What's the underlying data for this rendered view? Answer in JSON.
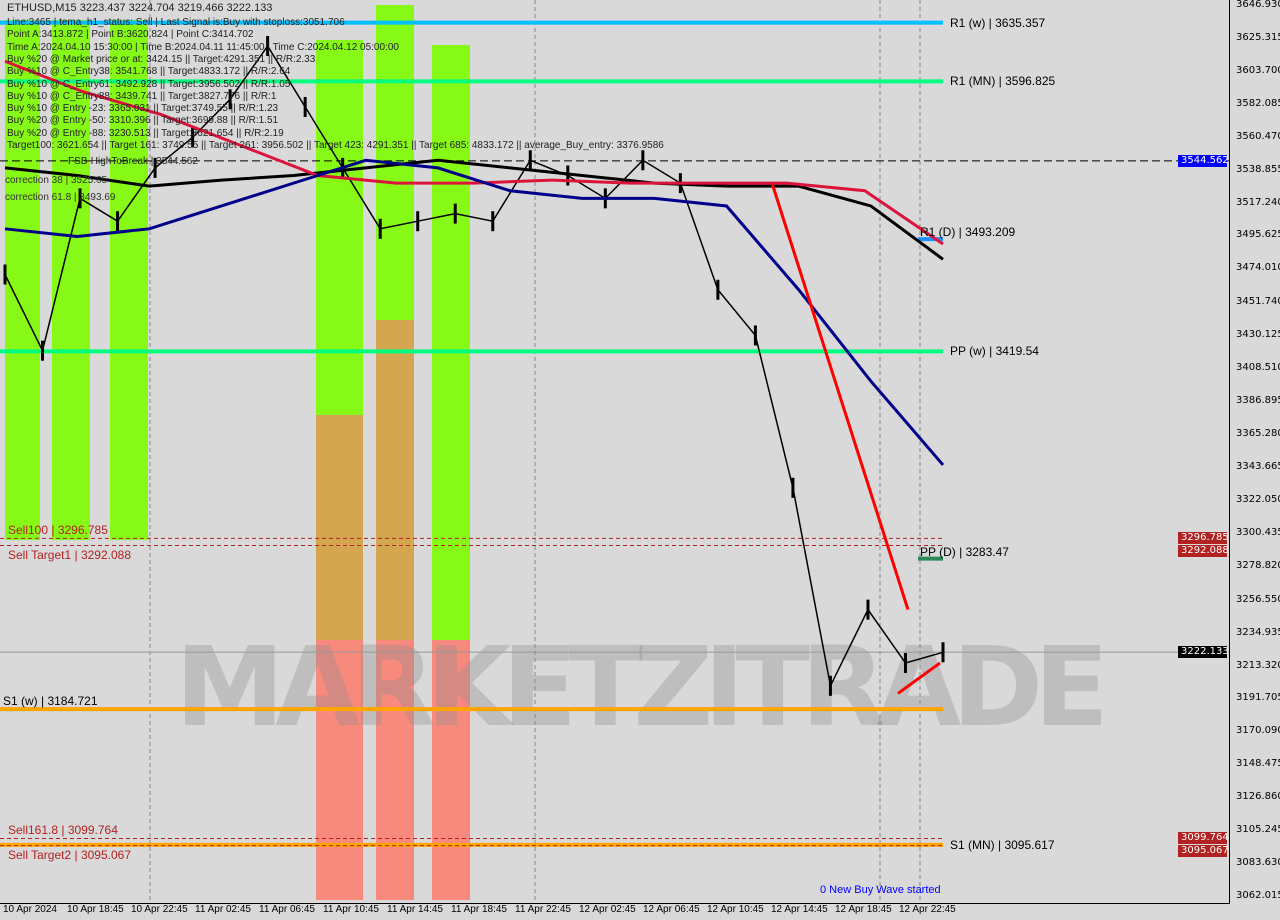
{
  "header": {
    "title": "ETHUSD,M15  3223.437 3224.704 3219.466 3222.133"
  },
  "info_lines": [
    "Line:3465 | tema_h1_status: Sell | Last Signal is:Buy with stoploss:3051.706",
    "Point A:3413.872 | Point B:3620.824 | Point C:3414.702",
    "Time A:2024.04.10 15:30:00 | Time B:2024.04.11 11:45:00 | Time C:2024.04.12 05:00:00",
    "Buy %20 @ Market price or at: 3424.15 || Target:4291.351 || R/R:2.33",
    "Buy %10 @ C_Entry38: 3541.768 || Target:4833.172 || R/R:2.64",
    "Buy %10 @ C_Entry61: 3492.928 || Target:3956.502 || R/R:1.05",
    "Buy %10 @ C_Entry88: 3439.741 || Target:3827.776 || R/R:1",
    "Buy %10 @ Entry -23: 3365.031 || Target:3749.55 || R/R:1.23",
    "Buy %20 @ Entry -50: 3310.396 || Target:3699.88 || R/R:1.51",
    "Buy %20 @ Entry -88: 3230.513 || Target:3621.654 || R/R:2.19",
    "Target100: 3621.654 || Target 161: 3749.55 || Target 261: 3956.502 || Target 423: 4291.351 || Target 685: 4833.172 || average_Buy_entry: 3376.9586"
  ],
  "annotations": {
    "fsb": "FSB-HighToBreak | 3544.562",
    "correction38": "correction 38 | 3525.65",
    "correction61": "correction 61.8 | 3493.69",
    "new_wave": "0 New Buy Wave started",
    "watermark": "MARKETZITRADE"
  },
  "levels": [
    {
      "label": "R1 (w) | 3635.357",
      "price": 3635.357,
      "color": "#00bfff",
      "style": "solid",
      "scope": "full"
    },
    {
      "label": "R1 (MN) | 3596.825",
      "price": 3596.825,
      "color": "#00ff7f",
      "style": "solid",
      "scope": "full"
    },
    {
      "label": "PP (w) | 3419.54",
      "price": 3419.54,
      "color": "#00ff7f",
      "style": "solid",
      "scope": "full"
    },
    {
      "label": "S1 (w) | 3184.721",
      "price": 3184.721,
      "color": "#ffa500",
      "style": "solid",
      "scope": "full"
    },
    {
      "label": "S1 (MN) | 3095.617",
      "price": 3095.617,
      "color": "#ffa500",
      "style": "solid",
      "scope": "full"
    },
    {
      "label": "R1 (D) | 3493.209",
      "price": 3493.209,
      "color": "#1e90ff",
      "style": "solid",
      "scope": "day"
    },
    {
      "label": "PP (D) | 3283.47",
      "price": 3283.47,
      "color": "#2e8b57",
      "style": "solid",
      "scope": "day"
    },
    {
      "label": "Sell100 | 3296.785",
      "price": 3296.785,
      "color": "#b22222",
      "style": "dash",
      "scope": "full"
    },
    {
      "label": "Sell Target1 | 3292.088",
      "price": 3292.088,
      "color": "#b22222",
      "style": "dash",
      "scope": "full"
    },
    {
      "label": "Sell161.8 | 3099.764",
      "price": 3099.764,
      "color": "#b22222",
      "style": "dash",
      "scope": "full"
    },
    {
      "label": "Sell Target2 | 3095.067",
      "price": 3095.067,
      "color": "#b22222",
      "style": "dash",
      "scope": "full"
    }
  ],
  "price_tags": [
    {
      "value": "3544.562",
      "color": "#0000ff"
    },
    {
      "value": "3296.785",
      "color": "#b22222"
    },
    {
      "value": "3292.088",
      "color": "#b22222"
    },
    {
      "value": "3222.133",
      "color": "#000000"
    },
    {
      "value": "3099.764",
      "color": "#b22222"
    },
    {
      "value": "3095.067",
      "color": "#b22222"
    }
  ],
  "chart_data": {
    "type": "line",
    "symbol": "ETHUSD",
    "timeframe": "M15",
    "y_ticks": [
      "3646.930",
      "3625.315",
      "3603.700",
      "3582.085",
      "3560.470",
      "3538.855",
      "3517.240",
      "3495.625",
      "3474.010",
      "3451.740",
      "3430.125",
      "3408.510",
      "3386.895",
      "3365.280",
      "3343.665",
      "3322.050",
      "3300.435",
      "3278.820",
      "3256.550",
      "3234.935",
      "3213.320",
      "3191.705",
      "3170.090",
      "3148.475",
      "3126.860",
      "3105.245",
      "3083.630",
      "3062.015"
    ],
    "ylim": [
      3062.015,
      3646.93
    ],
    "x_ticks": [
      "10 Apr 2024",
      "10 Apr 18:45",
      "10 Apr 22:45",
      "11 Apr 02:45",
      "11 Apr 06:45",
      "11 Apr 10:45",
      "11 Apr 14:45",
      "11 Apr 18:45",
      "11 Apr 22:45",
      "12 Apr 02:45",
      "12 Apr 06:45",
      "12 Apr 10:45",
      "12 Apr 14:45",
      "12 Apr 18:45",
      "12 Apr 22:45"
    ],
    "grid": false,
    "series": [
      {
        "color": "#000000",
        "times": [
          "10 Apr 14:45",
          "10 Apr 16:30",
          "10 Apr 18:45",
          "10 Apr 22:45",
          "11 Apr 02:45",
          "11 Apr 06:45",
          "11 Apr 08:45",
          "11 Apr 10:45",
          "11 Apr 12:45",
          "11 Apr 14:45",
          "11 Apr 16:45",
          "11 Apr 18:45",
          "11 Apr 22:45",
          "11 Apr 02:45+1",
          "12 Apr 06:45",
          "12 Apr 09:30",
          "12 Apr 10:45",
          "12 Apr 13:30",
          "12 Apr 14:45",
          "12 Apr 16:30",
          "12 Apr 17:45",
          "12 Apr 18:30",
          "12 Apr 20:00",
          "12 Apr 21:00",
          "12 Apr 22:00",
          "12 Apr 23:00"
        ],
        "values": [
          3470,
          3420,
          3520,
          3505,
          3540,
          3560,
          3585,
          3620,
          3580,
          3540,
          3500,
          3505,
          3510,
          3505,
          3545,
          3535,
          3520,
          3545,
          3530,
          3460,
          3430,
          3330,
          3200,
          3250,
          3215,
          3222
        ]
      },
      {
        "color": "#000000",
        "values": [
          3540,
          3535,
          3528,
          3532,
          3535,
          3540,
          3545,
          3540,
          3535,
          3530,
          3528,
          3528,
          3515,
          3480
        ]
      },
      {
        "color": "#dc143c",
        "values": [
          3610,
          3590,
          3575,
          3555,
          3535,
          3530,
          3530,
          3532,
          3530,
          3530,
          3530,
          3525,
          3490
        ]
      },
      {
        "color": "#00008b",
        "values": [
          3500,
          3495,
          3500,
          3515,
          3530,
          3545,
          3540,
          3525,
          3520,
          3520,
          3515,
          3460,
          3400,
          3345
        ]
      }
    ]
  }
}
